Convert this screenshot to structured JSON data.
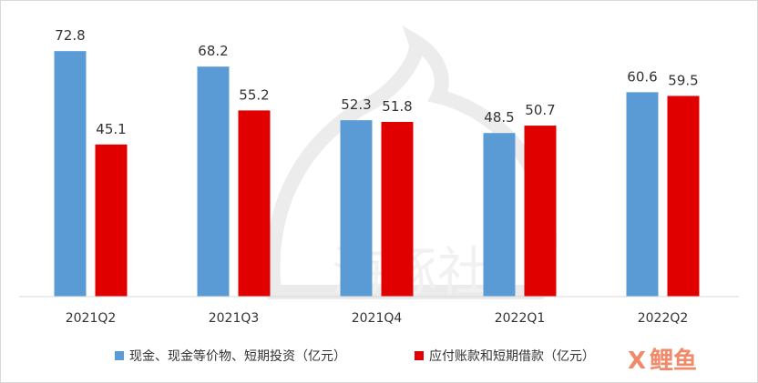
{
  "chart_data": {
    "type": "bar",
    "categories": [
      "2021Q2",
      "2021Q3",
      "2021Q4",
      "2022Q1",
      "2022Q2"
    ],
    "series": [
      {
        "name": "现金、现金等价物、短期投资（亿元）",
        "color": "#5b9bd5",
        "values": [
          72.8,
          68.2,
          52.3,
          48.5,
          60.6
        ]
      },
      {
        "name": "应付账款和短期借款（亿元）",
        "color": "#e00000",
        "values": [
          45.1,
          55.2,
          51.8,
          50.7,
          59.5
        ]
      }
    ],
    "title": "",
    "xlabel": "",
    "ylabel": "",
    "ylim": [
      0,
      75
    ],
    "grid": false,
    "legend_position": "bottom"
  },
  "watermark": {
    "center_text": "海豚社",
    "corner_text": "鲤鱼",
    "corner_icon": "x-logo-icon"
  }
}
